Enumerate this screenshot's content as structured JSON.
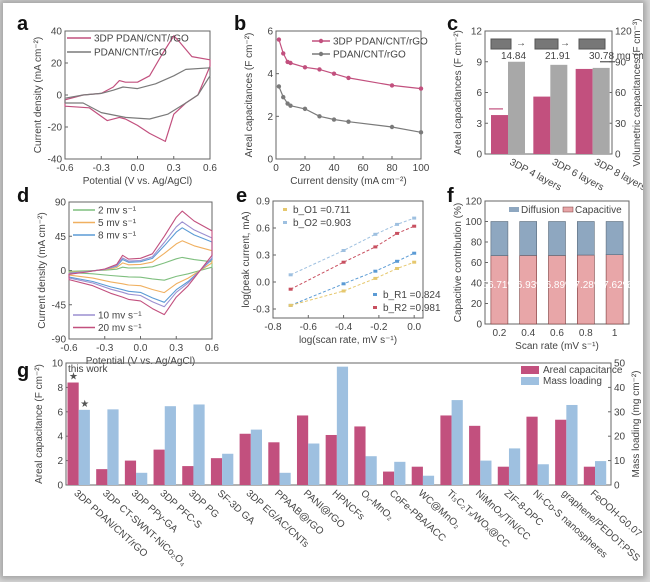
{
  "colors": {
    "magenta": "#c2507e",
    "gray": "#7a7a7a",
    "bar_gray": "#a8a8a8",
    "lightblue": "#9ec0e0",
    "diffusion": "#8ea7c0",
    "capacitive": "#e8a6a8",
    "yellow": "#e6c86e",
    "green": "#7fbf7f",
    "orange": "#f0b060",
    "blue8": "#5b9bd5",
    "purple10": "#9b8fd0",
    "red": "#c85060"
  },
  "chart_data": [
    {
      "panel": "a",
      "type": "line",
      "title": "",
      "xlabel": "Potential (V vs. Ag/AgCl)",
      "ylabel": "Current density (mA cm⁻²)",
      "xlim": [
        -0.6,
        0.6
      ],
      "ylim": [
        -40,
        40
      ],
      "xticks": [
        "-0.6",
        "-0.3",
        "0.0",
        "0.3",
        "0.6"
      ],
      "yticks": [
        "-40",
        "-20",
        "0",
        "20",
        "40"
      ],
      "legend": [
        "3DP PDAN/CNT/rGO",
        "PDAN/CNT/rGO"
      ],
      "legend_position": "top-left",
      "series": [
        {
          "name": "3DP PDAN/CNT/rGO",
          "color_key": "magenta",
          "x": [
            -0.6,
            -0.45,
            -0.3,
            -0.2,
            -0.15,
            -0.1,
            0.0,
            0.1,
            0.2,
            0.3,
            0.35,
            0.45,
            0.6,
            0.6,
            0.5,
            0.4,
            0.3,
            0.23,
            0.1,
            0.0,
            -0.1,
            -0.15,
            -0.25,
            -0.4,
            -0.6
          ],
          "y": [
            -3,
            0,
            1,
            5,
            9,
            8,
            8,
            12,
            25,
            37,
            33,
            24,
            22,
            18,
            0,
            -5,
            -12,
            -29,
            -24,
            -19,
            -15,
            -14,
            -16,
            -8,
            -7
          ]
        },
        {
          "name": "PDAN/CNT/rGO",
          "color_key": "gray",
          "x": [
            -0.6,
            -0.45,
            -0.3,
            -0.2,
            -0.12,
            0.0,
            0.15,
            0.3,
            0.4,
            0.6,
            0.6,
            0.5,
            0.4,
            0.25,
            0.1,
            -0.1,
            -0.3,
            -0.45,
            -0.6
          ],
          "y": [
            -2,
            0,
            1,
            3,
            5,
            4,
            7,
            12,
            16,
            17,
            12,
            0,
            -5,
            -12,
            -15,
            -14,
            -11,
            -5,
            -5
          ]
        }
      ]
    },
    {
      "panel": "b",
      "type": "line",
      "xlabel": "Current density (mA cm⁻²)",
      "ylabel": "Areal capacitances (F cm⁻²)",
      "xlim": [
        0,
        100
      ],
      "ylim": [
        0,
        6
      ],
      "xticks": [
        "0",
        "20",
        "40",
        "60",
        "80",
        "100"
      ],
      "yticks": [
        "0",
        "2",
        "4",
        "6"
      ],
      "legend": [
        "3DP PDAN/CNT/rGO",
        "PDAN/CNT/rGO"
      ],
      "legend_position": "top-right",
      "series": [
        {
          "name": "3DP PDAN/CNT/rGO",
          "color_key": "magenta",
          "x": [
            2,
            5,
            8,
            10,
            20,
            30,
            40,
            50,
            80,
            100
          ],
          "y": [
            5.6,
            4.95,
            4.55,
            4.5,
            4.3,
            4.2,
            4.0,
            3.8,
            3.45,
            3.3
          ]
        },
        {
          "name": "PDAN/CNT/rGO",
          "color_key": "gray",
          "x": [
            2,
            5,
            8,
            10,
            20,
            30,
            40,
            50,
            80,
            100
          ],
          "y": [
            3.4,
            2.9,
            2.6,
            2.5,
            2.35,
            2.0,
            1.85,
            1.75,
            1.5,
            1.25
          ]
        }
      ]
    },
    {
      "panel": "c",
      "type": "bar",
      "categories": [
        "3DP 4 layers",
        "3DP 6 layers",
        "3DP 8 layers"
      ],
      "ylabel": "Areal capacitances (F cm⁻²)",
      "y2label": "Volumetric capacitances (F cm⁻³)",
      "ylim": [
        0,
        12
      ],
      "y2lim": [
        0,
        120
      ],
      "yticks": [
        "0",
        "3",
        "6",
        "9",
        "12"
      ],
      "y2ticks": [
        "0",
        "30",
        "60",
        "90",
        "120"
      ],
      "annotations": [
        "14.84",
        "21.91",
        "30.78 mg cm⁻²"
      ],
      "series": [
        {
          "name": "Areal capacitance",
          "axis": "left",
          "color_key": "magenta",
          "values": [
            3.8,
            5.6,
            8.3
          ]
        },
        {
          "name": "Volumetric capacitance",
          "axis": "right",
          "color_key": "bar_gray",
          "values": [
            90,
            87,
            84
          ]
        }
      ]
    },
    {
      "panel": "d",
      "type": "line",
      "xlabel": "Potential (V vs. Ag/AgCl)",
      "ylabel": "Current density (mA cm⁻²)",
      "xlim": [
        -0.6,
        0.6
      ],
      "ylim": [
        -90,
        90
      ],
      "xticks": [
        "-0.6",
        "-0.3",
        "0.0",
        "0.3",
        "0.6"
      ],
      "yticks": [
        "-90",
        "-45",
        "0",
        "45",
        "90"
      ],
      "legend": [
        "2 mv s⁻¹",
        "5 mv s⁻¹",
        "8 mv s⁻¹",
        "10 mv s⁻¹",
        "20 mv s⁻¹"
      ],
      "series": [
        {
          "name": "2 mv s⁻¹",
          "color_key": "green",
          "scale": 0.22
        },
        {
          "name": "5 mv s⁻¹",
          "color_key": "orange",
          "scale": 0.5
        },
        {
          "name": "8 mv s⁻¹",
          "color_key": "blue8",
          "scale": 0.72
        },
        {
          "name": "10 mv s⁻¹",
          "color_key": "purple10",
          "scale": 0.82
        },
        {
          "name": "20 mv s⁻¹",
          "color_key": "magenta",
          "scale": 1.0
        }
      ],
      "base_shape": {
        "x": [
          -0.6,
          -0.45,
          -0.3,
          -0.2,
          -0.15,
          -0.1,
          0.0,
          0.1,
          0.2,
          0.3,
          0.35,
          0.45,
          0.6,
          0.6,
          0.5,
          0.4,
          0.3,
          0.2,
          0.1,
          0.0,
          -0.1,
          -0.15,
          -0.25,
          -0.4,
          -0.6
        ],
        "y": [
          -5,
          -2,
          2,
          8,
          20,
          15,
          16,
          22,
          45,
          70,
          78,
          65,
          52,
          20,
          0,
          -20,
          -35,
          -58,
          -50,
          -40,
          -38,
          -35,
          -30,
          -20,
          -12
        ]
      }
    },
    {
      "panel": "e",
      "type": "scatter",
      "xlabel": "log(scan rate, mV s⁻¹)",
      "ylabel": "log(peak current, mA)",
      "xlim": [
        -0.8,
        0.05
      ],
      "ylim": [
        -0.4,
        0.9
      ],
      "xticks": [
        "-0.8",
        "-0.6",
        "-0.4",
        "-0.2",
        "0.0"
      ],
      "yticks": [
        "-0.3",
        "0.0",
        "0.3",
        "0.6",
        "0.9"
      ],
      "annotations": [
        "b_O1 =0.711",
        "b_O2 =0.903",
        "b_R1 =0.824",
        "b_R2 =0.981"
      ],
      "series": [
        {
          "name": "O2",
          "color_key": "lightblue",
          "x": [
            -0.7,
            -0.4,
            -0.22,
            -0.097,
            0
          ],
          "y": [
            0.08,
            0.35,
            0.53,
            0.64,
            0.71
          ]
        },
        {
          "name": "R2",
          "color_key": "red",
          "x": [
            -0.7,
            -0.4,
            -0.22,
            -0.097,
            0
          ],
          "y": [
            -0.08,
            0.22,
            0.39,
            0.54,
            0.62
          ]
        },
        {
          "name": "R1",
          "color_key": "blue8",
          "x": [
            -0.7,
            -0.4,
            -0.22,
            -0.097,
            0
          ],
          "y": [
            -0.26,
            -0.02,
            0.12,
            0.23,
            0.32
          ]
        },
        {
          "name": "O1",
          "color_key": "yellow",
          "x": [
            -0.7,
            -0.4,
            -0.22,
            -0.097,
            0
          ],
          "y": [
            -0.26,
            -0.1,
            0.04,
            0.15,
            0.22
          ]
        }
      ]
    },
    {
      "panel": "f",
      "type": "bar",
      "stacked": true,
      "categories": [
        "0.2",
        "0.4",
        "0.6",
        "0.8",
        "1"
      ],
      "xlabel": "Scan rate (mV s⁻¹)",
      "ylabel": "Capacitive contribution (%)",
      "ylim": [
        0,
        120
      ],
      "yticks": [
        "0",
        "20",
        "40",
        "60",
        "80",
        "100",
        "120"
      ],
      "legend": [
        "Diffusion",
        "Capacitive"
      ],
      "series": [
        {
          "name": "Capacitive",
          "color_key": "capacitive",
          "values": [
            66.71,
            66.93,
            66.89,
            67.28,
            67.62
          ]
        },
        {
          "name": "Diffusion",
          "color_key": "diffusion",
          "values": [
            33.29,
            33.07,
            33.11,
            32.72,
            32.38
          ]
        }
      ],
      "value_labels": [
        "66.71%",
        "66.93%",
        "66.89%",
        "67.28%",
        "67.62%"
      ]
    },
    {
      "panel": "g",
      "type": "bar",
      "categories": [
        "3DP PDAN/CNT/rGO",
        "3DP CT-SWNT-NiCo₂O₄",
        "3DP PPy-GA",
        "3DP PFC-S",
        "3DP PG",
        "SF-3D GA",
        "3DP EG/AC/CNTs",
        "PPAAB@rGO",
        "PANI@rGO",
        "HPNCFs",
        "Oᵥ-MnO₂",
        "CoFe-PBA/ACC",
        "WC@MnO₂",
        "Ti₃C₂Tₓ/WOₓ@CC",
        "NiMnOₓ/TiN/CC",
        "ZIF-8-DPC",
        "Ni-Co-S nanospheres",
        "graphene/PEDOT:PSS",
        "FeOOH-G0.07"
      ],
      "ylabel": "Areal capacitance (F cm⁻²)",
      "y2label": "Mass loading (mg cm⁻²)",
      "ylim": [
        0,
        10
      ],
      "y2lim": [
        0,
        50
      ],
      "yticks": [
        "0",
        "2",
        "4",
        "6",
        "8",
        "10"
      ],
      "y2ticks": [
        "0",
        "10",
        "20",
        "30",
        "40",
        "50"
      ],
      "legend": [
        "Areal capacitance",
        "Mass loading"
      ],
      "legend_position": "top-right",
      "annotation": "this work",
      "series": [
        {
          "name": "Areal capacitance",
          "axis": "left",
          "color_key": "magenta",
          "values": [
            8.4,
            1.3,
            2.0,
            2.9,
            1.55,
            2.2,
            4.2,
            3.5,
            5.7,
            4.1,
            4.8,
            1.1,
            1.5,
            5.7,
            4.85,
            1.5,
            5.6,
            5.35,
            1.5
          ]
        },
        {
          "name": "Mass loading",
          "axis": "right",
          "color_key": "lightblue",
          "values": [
            30.8,
            31,
            5,
            32.3,
            33,
            12.8,
            22.7,
            5,
            17,
            48.5,
            11.8,
            9.5,
            3.8,
            34.8,
            10,
            15,
            8.5,
            32.8,
            9.8
          ]
        }
      ]
    }
  ]
}
